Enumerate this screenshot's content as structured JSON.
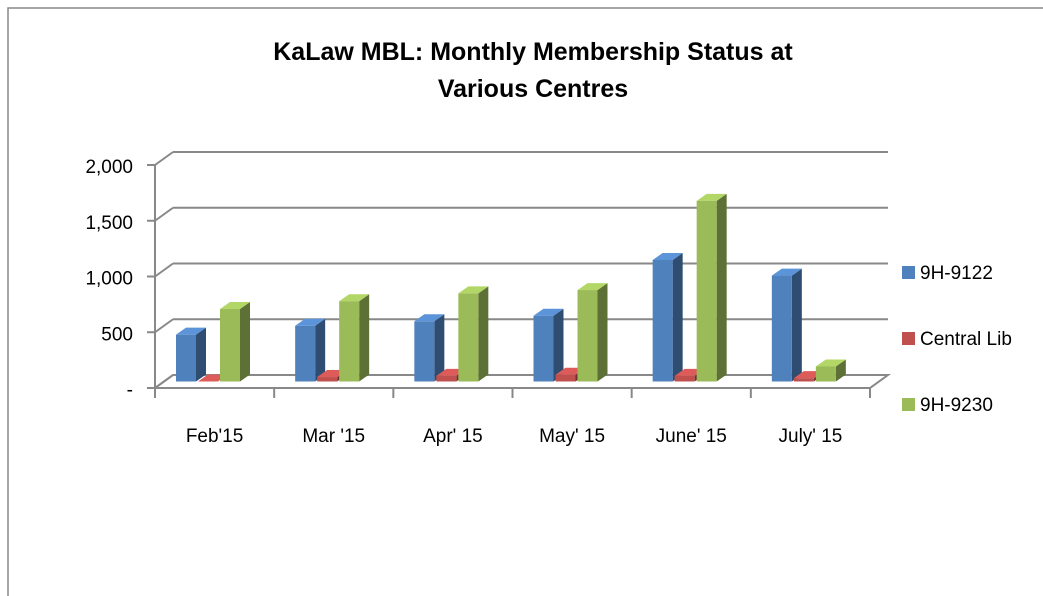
{
  "chart_data": {
    "type": "bar3d",
    "title": "KaLaw MBL: Monthly Membership Status at Various Centres",
    "categories": [
      "Feb'15",
      "Mar '15",
      "Apr' 15",
      "May' 15",
      "June' 15",
      "July' 15"
    ],
    "series": [
      {
        "name": "9H-9122",
        "color": "#4f81bd",
        "values": [
          420,
          500,
          540,
          590,
          1090,
          950
        ]
      },
      {
        "name": "Central Lib",
        "color": "#c0504d",
        "values": [
          0,
          40,
          50,
          60,
          50,
          30
        ]
      },
      {
        "name": "9H-9230",
        "color": "#9bbb59",
        "values": [
          650,
          720,
          790,
          820,
          1620,
          135
        ]
      }
    ],
    "ylim": [
      0,
      2000
    ],
    "yticks": [
      {
        "value": 0,
        "label": "-"
      },
      500,
      {
        "value": 1000,
        "label": "1,000"
      },
      {
        "value": 1500,
        "label": "1,500"
      },
      {
        "value": 2000,
        "label": "2,000"
      }
    ],
    "grid": true
  }
}
